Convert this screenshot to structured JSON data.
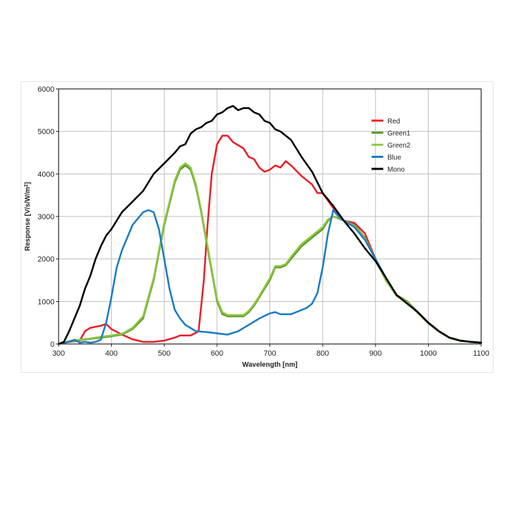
{
  "chart_data": {
    "type": "line",
    "title": "",
    "xlabel": "Wavelength [nm]",
    "ylabel": "Response [V/s/W/m",
    "ylabel_sup": "2",
    "ylabel_end": "]",
    "xlim": [
      300,
      1100
    ],
    "ylim": [
      0,
      6000
    ],
    "xticks": [
      300,
      400,
      500,
      600,
      700,
      800,
      900,
      1000,
      1100
    ],
    "yticks": [
      0,
      1000,
      2000,
      3000,
      4000,
      5000,
      6000
    ],
    "grid": true,
    "legend_position": "top-right",
    "series": [
      {
        "name": "Red",
        "color": "#e8202a",
        "x": [
          300,
          320,
          340,
          350,
          360,
          380,
          390,
          400,
          420,
          440,
          460,
          480,
          500,
          520,
          530,
          550,
          565,
          575,
          582,
          590,
          600,
          610,
          620,
          630,
          650,
          660,
          670,
          680,
          690,
          700,
          710,
          720,
          730,
          740,
          760,
          780,
          790,
          800,
          820,
          840,
          860,
          880,
          900,
          920,
          940,
          960,
          980,
          1000,
          1020,
          1040,
          1060,
          1080,
          1100
        ],
        "y": [
          0,
          50,
          80,
          300,
          380,
          430,
          470,
          350,
          220,
          110,
          50,
          50,
          80,
          150,
          200,
          200,
          300,
          1500,
          2800,
          4000,
          4700,
          4900,
          4900,
          4750,
          4600,
          4400,
          4350,
          4150,
          4050,
          4100,
          4200,
          4150,
          4300,
          4200,
          3950,
          3750,
          3550,
          3550,
          3200,
          2900,
          2850,
          2600,
          2000,
          1500,
          1150,
          1000,
          750,
          500,
          300,
          150,
          80,
          50,
          30
        ]
      },
      {
        "name": "Green1",
        "color": "#5e9b2e",
        "x": [
          300,
          320,
          340,
          360,
          380,
          400,
          420,
          440,
          460,
          480,
          500,
          520,
          530,
          540,
          550,
          560,
          570,
          580,
          590,
          600,
          610,
          620,
          630,
          650,
          660,
          670,
          680,
          700,
          710,
          720,
          730,
          740,
          760,
          780,
          800,
          810,
          820,
          830,
          840,
          860,
          880,
          900,
          920,
          940,
          960,
          980,
          1000,
          1020,
          1040,
          1060,
          1080,
          1100
        ],
        "y": [
          0,
          60,
          90,
          120,
          150,
          180,
          220,
          350,
          600,
          1500,
          2800,
          3800,
          4100,
          4200,
          4100,
          3700,
          3100,
          2400,
          1700,
          1000,
          700,
          650,
          650,
          650,
          750,
          900,
          1100,
          1500,
          1800,
          1800,
          1850,
          2000,
          2300,
          2500,
          2700,
          2900,
          3000,
          2950,
          2900,
          2800,
          2500,
          2000,
          1500,
          1150,
          1000,
          750,
          500,
          300,
          150,
          80,
          50,
          30
        ]
      },
      {
        "name": "Green2",
        "color": "#8cc63f",
        "x": [
          300,
          320,
          340,
          360,
          380,
          400,
          420,
          440,
          460,
          480,
          500,
          520,
          530,
          540,
          550,
          560,
          570,
          580,
          590,
          600,
          610,
          620,
          630,
          650,
          660,
          670,
          680,
          700,
          710,
          720,
          730,
          740,
          760,
          780,
          800,
          810,
          820,
          830,
          840,
          860,
          880,
          900,
          920,
          940,
          960,
          980,
          1000,
          1020,
          1040,
          1060,
          1080,
          1100
        ],
        "y": [
          0,
          70,
          100,
          130,
          170,
          200,
          240,
          380,
          650,
          1550,
          2850,
          3850,
          4150,
          4250,
          4150,
          3750,
          3150,
          2450,
          1750,
          1050,
          750,
          680,
          680,
          680,
          780,
          930,
          1130,
          1550,
          1830,
          1830,
          1880,
          2050,
          2350,
          2550,
          2750,
          2930,
          3000,
          2960,
          2900,
          2780,
          2480,
          1980,
          1480,
          1130,
          980,
          730,
          480,
          290,
          140,
          75,
          45,
          30
        ]
      },
      {
        "name": "Blue",
        "color": "#1c7cc3",
        "x": [
          300,
          310,
          320,
          330,
          340,
          350,
          360,
          370,
          380,
          390,
          400,
          410,
          420,
          440,
          460,
          470,
          480,
          490,
          500,
          510,
          520,
          530,
          540,
          560,
          580,
          600,
          620,
          640,
          660,
          680,
          700,
          710,
          720,
          740,
          760,
          770,
          780,
          790,
          800,
          810,
          820,
          830,
          840,
          860,
          880,
          900,
          920,
          940,
          960,
          980,
          1000,
          1020,
          1040,
          1060,
          1080,
          1100
        ],
        "y": [
          0,
          30,
          50,
          100,
          30,
          50,
          30,
          50,
          100,
          500,
          1100,
          1800,
          2200,
          2800,
          3100,
          3150,
          3100,
          2700,
          2000,
          1300,
          800,
          600,
          450,
          300,
          280,
          250,
          220,
          300,
          450,
          600,
          720,
          750,
          700,
          700,
          800,
          850,
          950,
          1200,
          1800,
          2600,
          3150,
          3000,
          2900,
          2750,
          2450,
          2000,
          1550,
          1150,
          950,
          750,
          500,
          300,
          150,
          80,
          50,
          30
        ]
      },
      {
        "name": "Mono",
        "color": "#000000",
        "x": [
          300,
          310,
          320,
          330,
          340,
          350,
          360,
          370,
          380,
          390,
          400,
          420,
          440,
          460,
          480,
          500,
          520,
          530,
          540,
          550,
          560,
          570,
          580,
          590,
          600,
          610,
          620,
          630,
          640,
          650,
          660,
          670,
          680,
          690,
          700,
          710,
          720,
          740,
          760,
          780,
          800,
          820,
          840,
          860,
          880,
          900,
          920,
          940,
          960,
          980,
          1000,
          1020,
          1040,
          1060,
          1080,
          1100
        ],
        "y": [
          0,
          50,
          300,
          600,
          900,
          1300,
          1600,
          2000,
          2300,
          2550,
          2700,
          3100,
          3350,
          3600,
          4000,
          4250,
          4500,
          4650,
          4700,
          4950,
          5050,
          5100,
          5200,
          5250,
          5400,
          5450,
          5550,
          5600,
          5500,
          5550,
          5550,
          5450,
          5400,
          5250,
          5200,
          5050,
          5000,
          4800,
          4400,
          4050,
          3550,
          3250,
          2900,
          2600,
          2250,
          1950,
          1550,
          1150,
          950,
          750,
          500,
          300,
          150,
          80,
          50,
          30
        ]
      }
    ]
  }
}
